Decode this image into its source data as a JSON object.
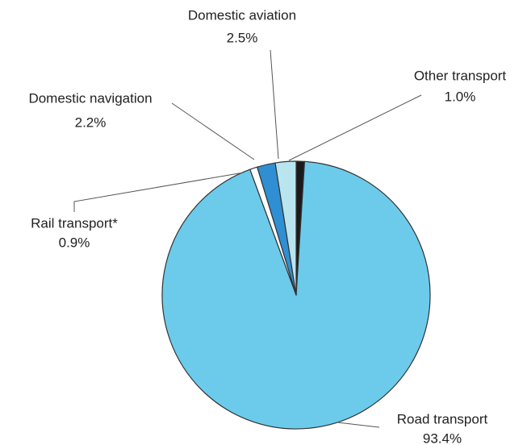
{
  "chart_data": {
    "type": "pie",
    "categories": [
      "Other transport",
      "Road transport",
      "Rail transport*",
      "Domestic navigation",
      "Domestic aviation"
    ],
    "values": [
      1.0,
      93.4,
      0.9,
      2.2,
      2.5
    ],
    "value_labels": [
      "1.0%",
      "93.4%",
      "0.9%",
      "2.2%",
      "2.5%"
    ],
    "colors": [
      "#1a1a1a",
      "#6ccbea",
      "#ffffff",
      "#2f8fd2",
      "#b9e5ef"
    ]
  }
}
